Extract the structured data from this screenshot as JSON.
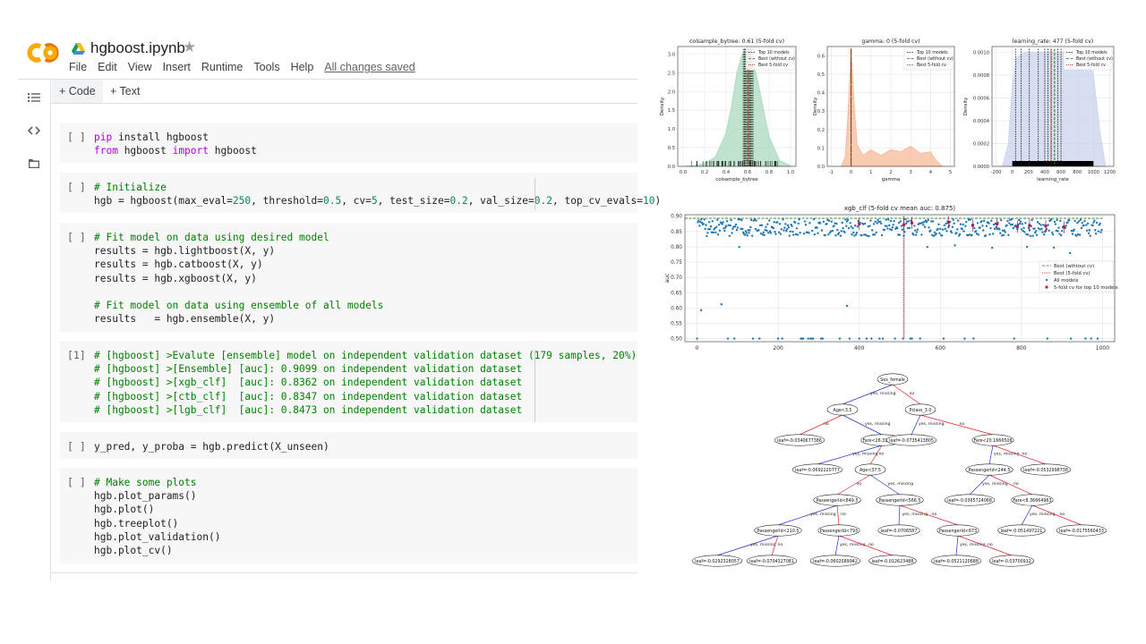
{
  "app": {
    "notebook_name": "hgboost.ipynb",
    "menu": [
      "File",
      "Edit",
      "View",
      "Insert",
      "Runtime",
      "Tools",
      "Help"
    ],
    "saved_status": "All changes saved",
    "toolbar": {
      "code_label": "+ Code",
      "text_label": "+ Text"
    }
  },
  "cells": [
    {
      "prompt": "[ ]",
      "lines": [
        [
          [
            "kw",
            "pip"
          ],
          [
            "fn",
            " install hgboost"
          ]
        ],
        [
          [
            "kw",
            "from"
          ],
          [
            "fn",
            " hgboost "
          ],
          [
            "kw",
            "import"
          ],
          [
            "fn",
            " hgboost"
          ]
        ]
      ]
    },
    {
      "prompt": "[ ]",
      "lines": [
        [
          [
            "cm",
            "# Initialize"
          ]
        ],
        [
          [
            "fn",
            "hgb = hgboost(max_eval="
          ],
          [
            "nm",
            "250"
          ],
          [
            "fn",
            ", threshold="
          ],
          [
            "nm",
            "0.5"
          ],
          [
            "fn",
            ", cv="
          ],
          [
            "nm",
            "5"
          ],
          [
            "fn",
            ", test_size="
          ],
          [
            "nm",
            "0.2"
          ],
          [
            "fn",
            ", val_size="
          ],
          [
            "nm",
            "0.2"
          ],
          [
            "fn",
            ", top_cv_evals="
          ],
          [
            "nm",
            "10"
          ],
          [
            "fn",
            ")"
          ]
        ]
      ]
    },
    {
      "prompt": "[ ]",
      "lines": [
        [
          [
            "cm",
            "# Fit model on data using desired model"
          ]
        ],
        [
          [
            "fn",
            "results = hgb.lightboost(X, y)"
          ]
        ],
        [
          [
            "fn",
            "results = hgb.catboost(X, y)"
          ]
        ],
        [
          [
            "fn",
            "results = hgb.xgboost(X, y)"
          ]
        ],
        [
          [
            "fn",
            ""
          ]
        ],
        [
          [
            "cm",
            "# Fit model on data using ensemble of all models"
          ]
        ],
        [
          [
            "fn",
            "results   = hgb.ensemble(X, y)"
          ]
        ]
      ]
    },
    {
      "prompt": "[1]",
      "lines": [
        [
          [
            "cm",
            "# [hgboost] >Evalute [ensemble] model on independent validation dataset (179 samples, 20%)"
          ]
        ],
        [
          [
            "cm",
            "# [hgboost] >[Ensemble] [auc]: 0.9099 on independent validation dataset"
          ]
        ],
        [
          [
            "cm",
            "# [hgboost] >[xgb_clf]  [auc]: 0.8362 on independent validation dataset"
          ]
        ],
        [
          [
            "cm",
            "# [hgboost] >[ctb_clf]  [auc]: 0.8347 on independent validation dataset"
          ]
        ],
        [
          [
            "cm",
            "# [hgboost] >[lgb_clf]  [auc]: 0.8473 on independent validation dataset"
          ]
        ]
      ]
    },
    {
      "prompt": "[ ]",
      "lines": [
        [
          [
            "fn",
            "y_pred, y_proba = hgb.predict(X_unseen)"
          ]
        ]
      ]
    },
    {
      "prompt": "[ ]",
      "lines": [
        [
          [
            "cm",
            "# Make some plots"
          ]
        ],
        [
          [
            "fn",
            "hgb.plot_params()"
          ]
        ],
        [
          [
            "fn",
            "hgb.plot()"
          ]
        ],
        [
          [
            "fn",
            "hgb.treeplot()"
          ]
        ],
        [
          [
            "fn",
            "hgb.plot_validation()"
          ]
        ],
        [
          [
            "fn",
            "hgb.plot_cv()"
          ]
        ]
      ]
    }
  ],
  "icons": [
    "colab-logo",
    "drive-icon",
    "star-icon",
    "toc-icon",
    "code-icon",
    "folder-icon"
  ],
  "colors": {
    "accent_orange": "#f9ab00",
    "comment_green": "#008000",
    "keyword_purple": "#af00db"
  },
  "chart_data": [
    {
      "type": "area",
      "title": "colsample_bytree: 0.61 (5-fold cv)",
      "xlabel": "colsample_bytree",
      "ylabel": "Density",
      "xlim": [
        -0.05,
        1.05
      ],
      "ylim": [
        0,
        3.2
      ],
      "xticks": [
        "0.0",
        "0.2",
        "0.4",
        "0.6",
        "0.8",
        "1.0"
      ],
      "yticks": [
        "0.0",
        "0.5",
        "1.0",
        "1.5",
        "2.0",
        "2.5",
        "3.0"
      ],
      "legend": [
        "Top 10 models",
        "Best (without cv)",
        "Best 5-fold cv"
      ],
      "legend_position": "top-right",
      "fill_color": "#a9d9bf",
      "density": {
        "x": [
          0.0,
          0.1,
          0.2,
          0.3,
          0.4,
          0.45,
          0.5,
          0.55,
          0.6,
          0.65,
          0.7,
          0.75,
          0.8,
          0.9,
          1.0
        ],
        "y": [
          0.0,
          0.02,
          0.08,
          0.25,
          0.9,
          1.6,
          2.5,
          3.0,
          3.1,
          2.8,
          2.2,
          1.5,
          0.8,
          0.15,
          0.02
        ]
      },
      "top10": [
        0.56,
        0.57,
        0.58,
        0.59,
        0.6,
        0.61,
        0.62,
        0.63,
        0.64,
        0.65
      ],
      "best_without_cv": 0.6,
      "best_cv": 0.61
    },
    {
      "type": "area",
      "title": "gamma: 0 (5-fold cv)",
      "xlabel": "gamma",
      "ylabel": "Density",
      "xlim": [
        -1.2,
        5.2
      ],
      "ylim": [
        0,
        0.65
      ],
      "xticks": [
        "-1",
        "0",
        "1",
        "2",
        "3",
        "4",
        "5"
      ],
      "yticks": [
        "0.0",
        "0.1",
        "0.2",
        "0.3",
        "0.4",
        "0.5",
        "0.6"
      ],
      "legend": [
        "Top 10 models",
        "Best (without cv)",
        "Best 5-fold cv"
      ],
      "legend_position": "top-right",
      "fill_color": "#f7b999",
      "density": {
        "x": [
          -0.5,
          -0.3,
          -0.15,
          0,
          0.15,
          0.3,
          0.6,
          1.0,
          1.5,
          2.0,
          2.5,
          3.0,
          3.5,
          4.0,
          4.3,
          4.6
        ],
        "y": [
          0,
          0.05,
          0.3,
          0.64,
          0.35,
          0.12,
          0.06,
          0.09,
          0.06,
          0.09,
          0.08,
          0.11,
          0.07,
          0.08,
          0.03,
          0
        ]
      },
      "top10": [
        0
      ],
      "best_without_cv": 0,
      "best_cv": 0
    },
    {
      "type": "area",
      "title": "learning_rate: 477 (5-fold cv)",
      "xlabel": "learning_rate",
      "ylabel": "Density",
      "xlim": [
        -250,
        1250
      ],
      "ylim": [
        0,
        0.00105
      ],
      "xticks": [
        "-200",
        "0",
        "200",
        "400",
        "600",
        "800",
        "1000",
        "1200"
      ],
      "yticks": [
        "0.0000",
        "0.0002",
        "0.0004",
        "0.0006",
        "0.0008",
        "0.0010"
      ],
      "legend": [
        "Top 10 models",
        "Best (without cv)",
        "Best 5-fold cv"
      ],
      "legend_position": "top-right",
      "fill_color": "#c9d3ec",
      "density": {
        "x": [
          -120,
          -50,
          0,
          50,
          150,
          300,
          450,
          600,
          800,
          900,
          1000,
          1080,
          1150
        ],
        "y": [
          0,
          0.0002,
          0.0007,
          0.00095,
          0.001,
          0.001,
          0.001,
          0.001,
          0.001,
          0.001,
          0.0008,
          0.0003,
          0
        ]
      },
      "top10": [
        40,
        110,
        210,
        320,
        400,
        440,
        480,
        560,
        600
      ],
      "best_without_cv": 520,
      "best_cv": 477
    },
    {
      "type": "scatter",
      "title": "xgb_clf (5-fold cv mean auc: 0.875)",
      "xlabel": "",
      "ylabel": "auc",
      "xlim": [
        -30,
        1030
      ],
      "ylim": [
        0.49,
        0.905
      ],
      "xticks": [
        "0",
        "200",
        "400",
        "600",
        "800",
        "1000"
      ],
      "yticks": [
        "0.50",
        "0.55",
        "0.60",
        "0.65",
        "0.70",
        "0.75",
        "0.80",
        "0.85",
        "0.90"
      ],
      "legend": [
        "Best (wihtout cv)",
        "Best (5-fold cv)",
        "All models",
        "5-fold cv for top 10 models"
      ],
      "legend_position": "center-right",
      "best_line": 0.893,
      "best_cv_x": 510,
      "top10": [
        {
          "x": 400,
          "y": 0.875
        },
        {
          "x": 510,
          "y": 0.872
        },
        {
          "x": 530,
          "y": 0.878
        },
        {
          "x": 620,
          "y": 0.88
        },
        {
          "x": 680,
          "y": 0.87
        },
        {
          "x": 740,
          "y": 0.875
        },
        {
          "x": 790,
          "y": 0.866
        },
        {
          "x": 820,
          "y": 0.87
        },
        {
          "x": 860,
          "y": 0.868
        },
        {
          "x": 905,
          "y": 0.864
        }
      ]
    }
  ],
  "tree": {
    "nodes": [
      {
        "id": "n0",
        "label": "Sex_female"
      },
      {
        "id": "n1",
        "label": "Age<3.5"
      },
      {
        "id": "n2",
        "label": "Pclass_3.0"
      },
      {
        "id": "n3",
        "label": "leaf=-0.0340677386"
      },
      {
        "id": "n4",
        "label": "Fare<26.3187504"
      },
      {
        "id": "n5",
        "label": "leaf=-0.0735413805"
      },
      {
        "id": "n6",
        "label": "Fare<20.1666508"
      },
      {
        "id": "n7",
        "label": "leaf=-0.0692220777"
      },
      {
        "id": "n8",
        "label": "Age<37.5"
      },
      {
        "id": "n9",
        "label": "PassengerId<244.5"
      },
      {
        "id": "n10",
        "label": "leaf=-0.0532998738"
      },
      {
        "id": "n11",
        "label": "PassengerId<849.5"
      },
      {
        "id": "n12",
        "label": "PassengerId<566.5"
      },
      {
        "id": "n13",
        "label": "leaf=-0.0365724068"
      },
      {
        "id": "n14",
        "label": "Fare<8.36664963"
      },
      {
        "id": "n15",
        "label": "PassengerId<210.5"
      },
      {
        "id": "n16",
        "label": "PassengerId<793"
      },
      {
        "id": "n17",
        "label": "leaf=-0.0706587"
      },
      {
        "id": "n18",
        "label": "PassengerId<673"
      },
      {
        "id": "n19",
        "label": "leaf=-0.051497221"
      },
      {
        "id": "n20",
        "label": "leaf=-0.0175560433"
      },
      {
        "id": "n21",
        "label": "leaf=-0.0292328057"
      },
      {
        "id": "n22",
        "label": "leaf=-0.0704327081"
      },
      {
        "id": "n23",
        "label": "leaf=-0.0602089942"
      },
      {
        "id": "n24",
        "label": "leaf=-0.012623488"
      },
      {
        "id": "n25",
        "label": "leaf=-0.0521120688"
      },
      {
        "id": "n26",
        "label": "leaf=-0.03700912"
      }
    ],
    "edges": [
      {
        "from": "n0",
        "to": "n1",
        "label": "yes, missing"
      },
      {
        "from": "n0",
        "to": "n2",
        "label": "no"
      },
      {
        "from": "n1",
        "to": "n3",
        "label": "no"
      },
      {
        "from": "n1",
        "to": "n4",
        "label": "yes, missing"
      },
      {
        "from": "n2",
        "to": "n5",
        "label": "yes, missing"
      },
      {
        "from": "n2",
        "to": "n6",
        "label": "no"
      },
      {
        "from": "n4",
        "to": "n7",
        "label": "yes, missing"
      },
      {
        "from": "n4",
        "to": "n8",
        "label": "no"
      },
      {
        "from": "n6",
        "to": "n9",
        "label": "yes, missing"
      },
      {
        "from": "n6",
        "to": "n10",
        "label": "no"
      },
      {
        "from": "n8",
        "to": "n11",
        "label": "no"
      },
      {
        "from": "n8",
        "to": "n12",
        "label": "yes, missing"
      },
      {
        "from": "n9",
        "to": "n13",
        "label": "yes, missing"
      },
      {
        "from": "n9",
        "to": "n14",
        "label": "no"
      },
      {
        "from": "n11",
        "to": "n15",
        "label": "yes, missing"
      },
      {
        "from": "n11",
        "to": "n16",
        "label": "no"
      },
      {
        "from": "n12",
        "to": "n17",
        "label": "yes, missing"
      },
      {
        "from": "n12",
        "to": "n18",
        "label": "no"
      },
      {
        "from": "n14",
        "to": "n19",
        "label": "yes, missing"
      },
      {
        "from": "n14",
        "to": "n20",
        "label": "no"
      },
      {
        "from": "n15",
        "to": "n21",
        "label": "yes, missing"
      },
      {
        "from": "n15",
        "to": "n22",
        "label": "no"
      },
      {
        "from": "n16",
        "to": "n23",
        "label": "yes, missing"
      },
      {
        "from": "n16",
        "to": "n24",
        "label": "no"
      },
      {
        "from": "n18",
        "to": "n25",
        "label": "yes, missing"
      },
      {
        "from": "n18",
        "to": "n26",
        "label": "no"
      }
    ]
  }
}
